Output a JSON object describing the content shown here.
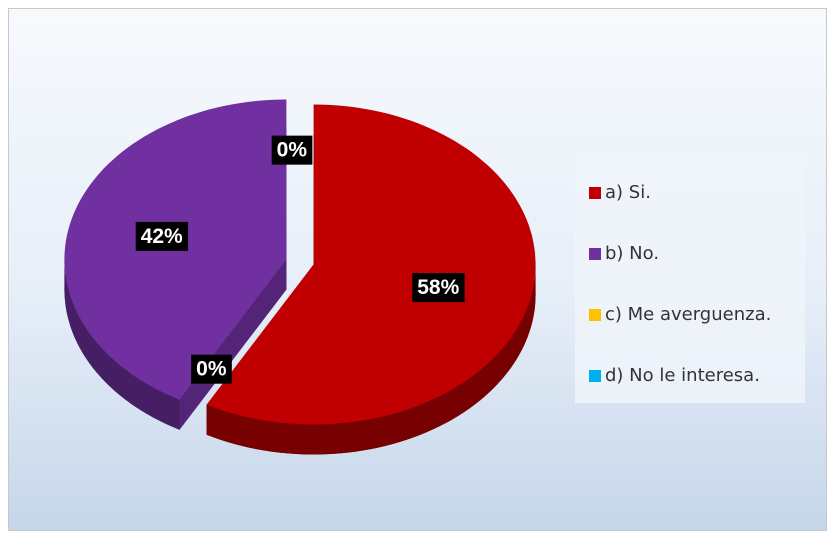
{
  "chart_data": {
    "type": "pie",
    "categories": [
      "a) Si.",
      "b) No.",
      "c) Me averguenza.",
      "d) No le interesa."
    ],
    "values": [
      58,
      42,
      0,
      0
    ],
    "value_labels": [
      "58%",
      "42%",
      "0%",
      "0%"
    ],
    "colors": [
      "#c00000",
      "#7030a0",
      "#ffc000",
      "#00b0f0"
    ],
    "legend": "right"
  }
}
